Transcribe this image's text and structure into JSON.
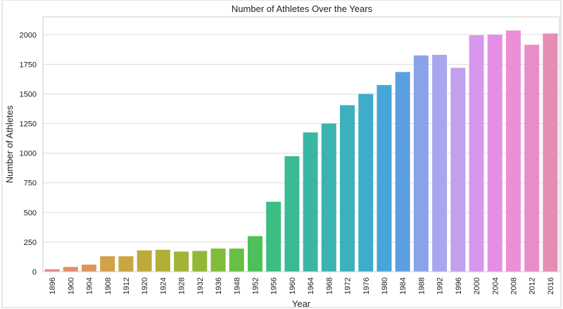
{
  "chart_data": {
    "type": "bar",
    "title": "Number of Athletes Over the Years",
    "xlabel": "Year",
    "ylabel": "Number of Athletes",
    "ylim": [
      0,
      2150
    ],
    "yticks": [
      0,
      250,
      500,
      750,
      1000,
      1250,
      1500,
      1750,
      2000
    ],
    "grid": "horizontal",
    "categories": [
      "1896",
      "1900",
      "1904",
      "1908",
      "1912",
      "1920",
      "1924",
      "1928",
      "1932",
      "1936",
      "1948",
      "1952",
      "1956",
      "1960",
      "1964",
      "1968",
      "1972",
      "1976",
      "1980",
      "1984",
      "1988",
      "1992",
      "1996",
      "2000",
      "2004",
      "2008",
      "2012",
      "2016"
    ],
    "values": [
      20,
      40,
      60,
      130,
      130,
      180,
      185,
      170,
      175,
      195,
      195,
      300,
      590,
      975,
      1175,
      1250,
      1405,
      1500,
      1575,
      1685,
      1825,
      1830,
      1720,
      1995,
      2000,
      2035,
      1915,
      2010
    ],
    "colors": [
      "#e6847c",
      "#e28e6c",
      "#dc985a",
      "#d2a148",
      "#c8a642",
      "#bdaa3c",
      "#b0af37",
      "#a2b336",
      "#92b837",
      "#7fbc3a",
      "#67bf43",
      "#4ec05a",
      "#3cbd83",
      "#39ba95",
      "#3ab7a3",
      "#3bb3b0",
      "#3cb0bd",
      "#3eaccb",
      "#45a6d8",
      "#5c9fdf",
      "#8aa3e8",
      "#a8a6ec",
      "#c1a0ee",
      "#d797ee",
      "#e58ee5",
      "#ec8ed8",
      "#ea8cc8",
      "#e58db5"
    ]
  }
}
